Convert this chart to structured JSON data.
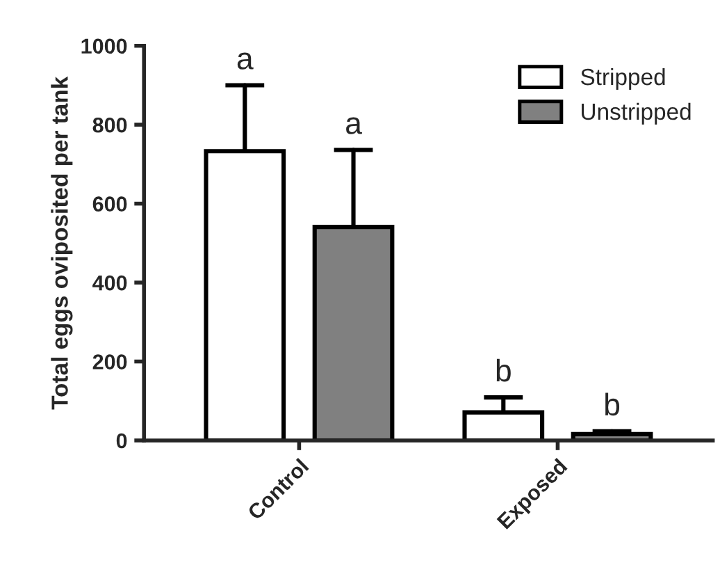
{
  "chart_data": {
    "type": "bar",
    "ylabel": "Total eggs oviposited per tank",
    "categories": [
      "Control",
      "Exposed"
    ],
    "series": [
      {
        "name": "Stripped",
        "color": "#ffffff",
        "values": [
          733,
          71
        ],
        "errors": [
          167,
          38
        ]
      },
      {
        "name": "Unstripped",
        "color": "#808080",
        "values": [
          541,
          16
        ],
        "errors": [
          195,
          7
        ]
      }
    ],
    "annotations": [
      "a",
      "a",
      "b",
      "b"
    ],
    "ylim": [
      0,
      1000
    ],
    "yticks": [
      0,
      200,
      400,
      600,
      800,
      1000
    ],
    "grid": false,
    "legend": "top right"
  }
}
